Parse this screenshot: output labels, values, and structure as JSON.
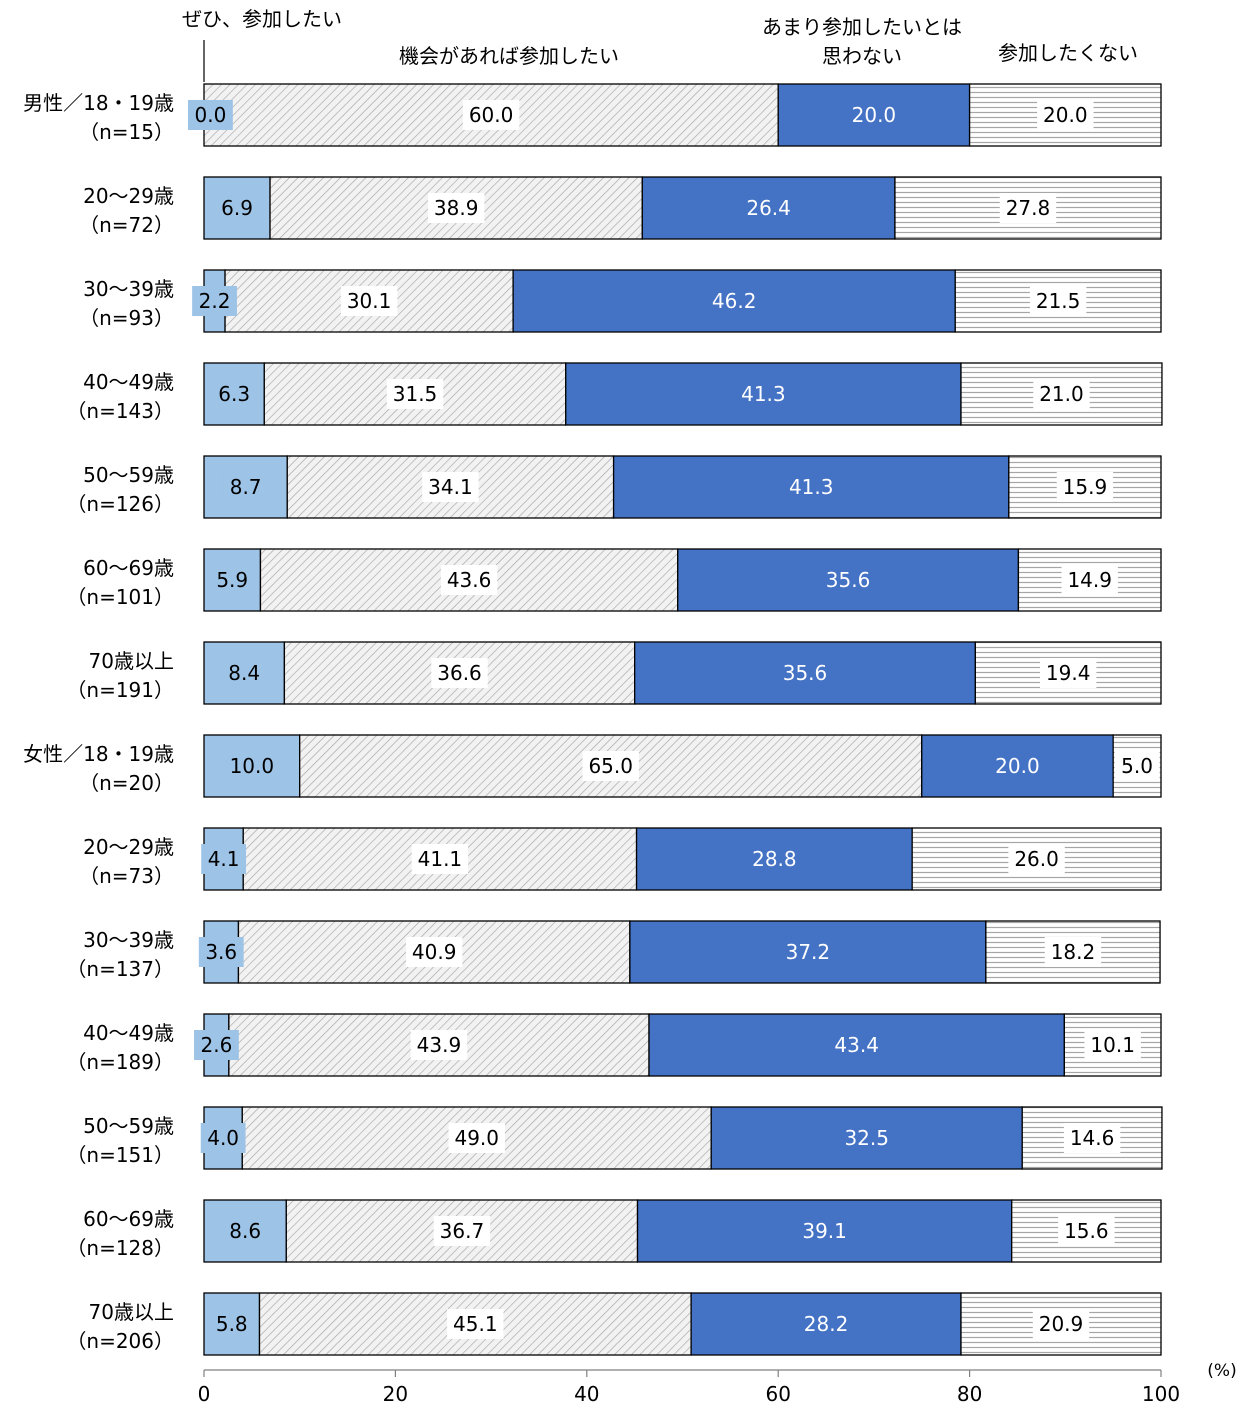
{
  "chart_data": {
    "type": "bar",
    "orientation": "horizontal-stacked-100",
    "legend_labels": [
      "ぜひ、参加したい",
      "機会があれば参加したい",
      "あまり参加したいとは",
      "思わない",
      "参加したくない"
    ],
    "series": [
      {
        "name": "ぜひ、参加したい",
        "color": "#9DC3E6",
        "pattern": "solid"
      },
      {
        "name": "機会があれば参加したい",
        "color": "#F2F2F2",
        "pattern": "diagonal-hatch"
      },
      {
        "name": "あまり参加したいとは思わない",
        "color": "#4472C4",
        "pattern": "solid"
      },
      {
        "name": "参加したくない",
        "color": "#FFFFFF",
        "pattern": "horizontal-lines"
      }
    ],
    "categories": [
      {
        "line1": "男性／18・19歳",
        "line2": "（n=15）",
        "values": [
          0.0,
          60.0,
          20.0,
          20.0
        ],
        "labels": [
          "0.0",
          "60.0",
          "20.0",
          "20.0"
        ]
      },
      {
        "line1": "20～29歳",
        "line2": "（n=72）",
        "values": [
          6.9,
          38.9,
          26.4,
          27.8
        ],
        "labels": [
          "6.9",
          "38.9",
          "26.4",
          "27.8"
        ]
      },
      {
        "line1": "30～39歳",
        "line2": "（n=93）",
        "values": [
          2.2,
          30.1,
          46.2,
          21.5
        ],
        "labels": [
          "2.2",
          "30.1",
          "46.2",
          "21.5"
        ]
      },
      {
        "line1": "40～49歳",
        "line2": "（n=143）",
        "values": [
          6.3,
          31.5,
          41.3,
          21.0
        ],
        "labels": [
          "6.3",
          "31.5",
          "41.3",
          "21.0"
        ]
      },
      {
        "line1": "50～59歳",
        "line2": "（n=126）",
        "values": [
          8.7,
          34.1,
          41.3,
          15.9
        ],
        "labels": [
          "8.7",
          "34.1",
          "41.3",
          "15.9"
        ]
      },
      {
        "line1": "60～69歳",
        "line2": "（n=101）",
        "values": [
          5.9,
          43.6,
          35.6,
          14.9
        ],
        "labels": [
          "5.9",
          "43.6",
          "35.6",
          "14.9"
        ]
      },
      {
        "line1": "70歳以上",
        "line2": "（n=191）",
        "values": [
          8.4,
          36.6,
          35.6,
          19.4
        ],
        "labels": [
          "8.4",
          "36.6",
          "35.6",
          "19.4"
        ]
      },
      {
        "line1": "女性／18・19歳",
        "line2": "（n=20）",
        "values": [
          10.0,
          65.0,
          20.0,
          5.0
        ],
        "labels": [
          "10.0",
          "65.0",
          "20.0",
          "5.0"
        ]
      },
      {
        "line1": "20～29歳",
        "line2": "（n=73）",
        "values": [
          4.1,
          41.1,
          28.8,
          26.0
        ],
        "labels": [
          "4.1",
          "41.1",
          "28.8",
          "26.0"
        ]
      },
      {
        "line1": "30～39歳",
        "line2": "（n=137）",
        "values": [
          3.6,
          40.9,
          37.2,
          18.2
        ],
        "labels": [
          "3.6",
          "40.9",
          "37.2",
          "18.2"
        ]
      },
      {
        "line1": "40～49歳",
        "line2": "（n=189）",
        "values": [
          2.6,
          43.9,
          43.4,
          10.1
        ],
        "labels": [
          "2.6",
          "43.9",
          "43.4",
          "10.1"
        ]
      },
      {
        "line1": "50～59歳",
        "line2": "（n=151）",
        "values": [
          4.0,
          49.0,
          32.5,
          14.6
        ],
        "labels": [
          "4.0",
          "49.0",
          "32.5",
          "14.6"
        ]
      },
      {
        "line1": "60～69歳",
        "line2": "（n=128）",
        "values": [
          8.6,
          36.7,
          39.1,
          15.6
        ],
        "labels": [
          "8.6",
          "36.7",
          "39.1",
          "15.6"
        ]
      },
      {
        "line1": "70歳以上",
        "line2": "（n=206）",
        "values": [
          5.8,
          45.1,
          28.2,
          20.9
        ],
        "labels": [
          "5.8",
          "45.1",
          "28.2",
          "20.9"
        ]
      }
    ],
    "x_ticks": [
      "0",
      "20",
      "40",
      "60",
      "80",
      "100"
    ],
    "x_tick_values": [
      0,
      20,
      40,
      60,
      80,
      100
    ],
    "xlim": [
      0,
      100
    ],
    "x_unit_label": "(%)",
    "grid": false
  }
}
